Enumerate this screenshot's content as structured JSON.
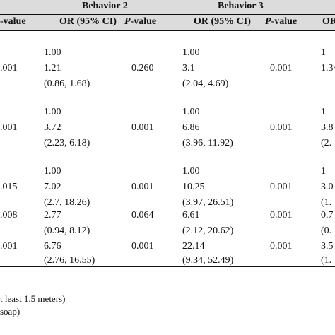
{
  "table": {
    "groups": [
      "Behavior 2",
      "Behavior 3"
    ],
    "columns": [
      "-value",
      "OR (95% CI)",
      "P-value",
      "OR (95% CI)",
      "P-value",
      "OR"
    ],
    "rows": [
      {
        "p_left": "",
        "b2_or": [
          "1.00",
          "1.21",
          "(0.86, 1.68)"
        ],
        "b2_p": "0.260",
        "b3_or": [
          "1.00",
          "3.1",
          "(2.04, 4.69)"
        ],
        "b3_p": "0.001",
        "next": [
          "1",
          "1.34",
          ""
        ]
      },
      {
        "p_left": ".001",
        "b2_or": [
          "1.00",
          "3.72",
          "(2.23, 6.18)"
        ],
        "b2_p": "0.001",
        "b3_or": [
          "1.00",
          "6.86",
          "(3.96, 11.92)"
        ],
        "b3_p": "0.001",
        "next": [
          "1",
          "3.8",
          "(2."
        ]
      },
      {
        "p_left": ".015",
        "b2_or": [
          "1.00",
          "7.02",
          "(2.7, 18.26)"
        ],
        "b2_p": "0.001",
        "b3_or": [
          "1.00",
          "10.25",
          "(3.97, 26.51)"
        ],
        "b3_p": "0.001",
        "next": [
          "1",
          "3.0",
          "(1."
        ]
      },
      {
        "p_left": ".008",
        "b2_or": [
          "2.77",
          "(0.94, 8.12)"
        ],
        "b2_p": "0.064",
        "b3_or": [
          "6.61",
          "(2.12, 20.62)"
        ],
        "b3_p": "0.001",
        "next": [
          "0.7",
          "(0."
        ]
      },
      {
        "p_left": ".001",
        "b2_or": [
          "6.76",
          "(2.76, 16.55)"
        ],
        "b2_p": "0.001",
        "b3_or": [
          "22.14",
          "(9.34, 52.49)"
        ],
        "b3_p": "0.001",
        "next": [
          "3.5",
          "(1."
        ]
      }
    ],
    "row1_p_left": ".001",
    "notes": [
      "t least 1.5 meters)",
      "soap)"
    ]
  }
}
